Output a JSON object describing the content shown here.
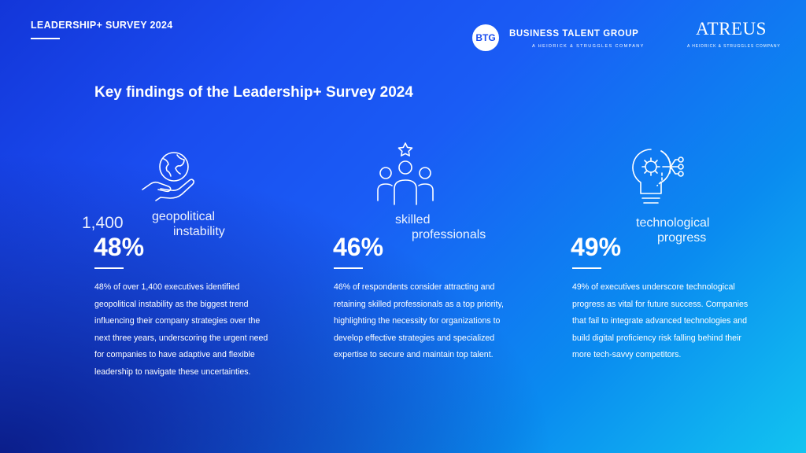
{
  "header": {
    "survey_title": "LEADERSHIP+ SURVEY 2024"
  },
  "logos": {
    "btg_badge": "BTG",
    "btg_name": "BUSINESS TALENT GROUP",
    "btg_tagline": "A HEIDRICK & STRUGGLES COMPANY",
    "atreus_name": "ATREUS",
    "atreus_tagline": "A HEIDRICK & STRUGGLES COMPANY"
  },
  "page_heading": "Key findings of the Leadership+ Survey 2024",
  "findings": [
    {
      "icon": "hand-globe-icon",
      "extra_label": "1,400",
      "label_line1": "geopolitical",
      "label_line2": "instability",
      "stat": "48%",
      "description": "48% of over 1,400 executives identified geopolitical instability as the biggest trend influencing their company strategies over the next three years, underscoring the urgent need for companies to have adaptive and flexible leadership to navigate these uncertainties."
    },
    {
      "icon": "team-star-icon",
      "label_line1": "skilled",
      "label_line2": "professionals",
      "stat": "46%",
      "description": "46% of respondents consider attracting and retaining skilled professionals as a top priority, highlighting the necessity for organizations to develop effective strategies and specialized expertise to secure and maintain top talent."
    },
    {
      "icon": "lightbulb-circuit-icon",
      "label_line1": "technological",
      "label_line2": "progress",
      "stat": "49%",
      "description": "49% of executives underscore technological progress as vital for future success. Companies that fail to integrate advanced technologies and build digital proficiency risk falling behind their more tech-savvy competitors."
    }
  ]
}
